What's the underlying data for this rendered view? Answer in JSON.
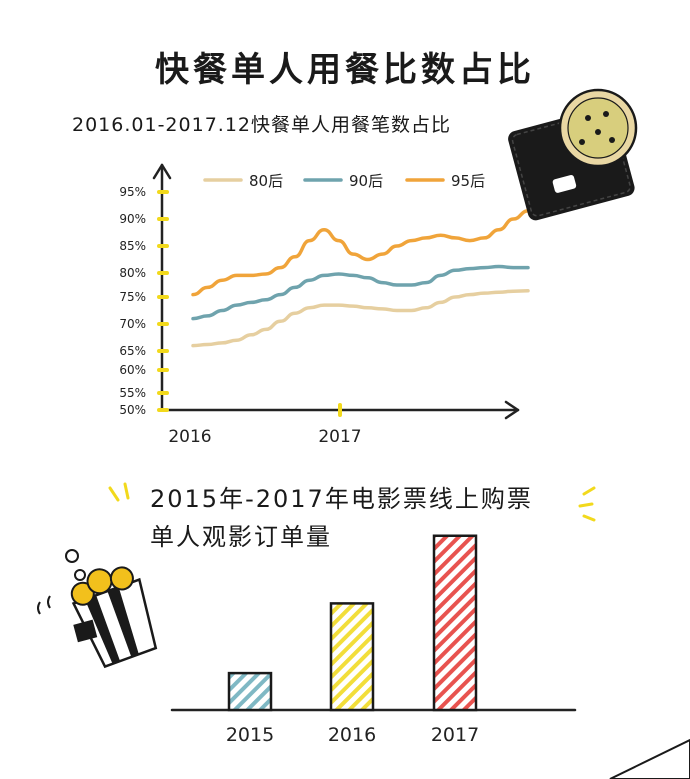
{
  "line_chart": {
    "title": "快餐单人用餐比数占比",
    "subtitle": "2016.01-2017.12快餐单人用餐笔数占比"
  },
  "bar_chart": {
    "title_line1": "2015年-2017年电影票线上购票",
    "title_line2": "单人观影订单量"
  },
  "chart_data": [
    {
      "type": "line",
      "title": "快餐单人用餐比数占比",
      "subtitle": "2016.01-2017.12快餐单人用餐笔数占比",
      "x_ticks": [
        "2016",
        "2017"
      ],
      "y_ticks": [
        "95%",
        "90%",
        "85%",
        "80%",
        "75%",
        "70%",
        "65%",
        "60%",
        "55%",
        "50%"
      ],
      "y_tick_values": [
        95,
        90,
        85,
        80,
        75,
        70,
        65,
        60,
        55,
        50
      ],
      "x": [
        "2016.01",
        "2016.02",
        "2016.03",
        "2016.04",
        "2016.05",
        "2016.06",
        "2016.07",
        "2016.08",
        "2016.09",
        "2016.10",
        "2016.11",
        "2016.12",
        "2017.01",
        "2017.02",
        "2017.03",
        "2017.04",
        "2017.05",
        "2017.06",
        "2017.07",
        "2017.08",
        "2017.09",
        "2017.10",
        "2017.11",
        "2017.12"
      ],
      "legend_position": "top",
      "series": [
        {
          "name": "80后",
          "color": "#e6cfa0",
          "values": [
            66,
            66.2,
            66.5,
            67,
            68,
            69,
            70.5,
            72,
            73,
            73.5,
            73.5,
            73.3,
            73,
            72.8,
            72.5,
            72.5,
            73,
            74,
            75,
            75.5,
            75.8,
            76,
            76.2,
            76.3
          ]
        },
        {
          "name": "90后",
          "color": "#6fa3ad",
          "values": [
            71,
            71.5,
            72.5,
            73.5,
            74,
            74.5,
            75.5,
            77,
            78.5,
            79.5,
            79.8,
            79.5,
            79,
            78,
            77.5,
            77.5,
            78,
            79.5,
            80.5,
            80.8,
            81,
            81.2,
            81,
            81
          ]
        },
        {
          "name": "95后",
          "color": "#f0a43a",
          "values": [
            75.5,
            77,
            78.5,
            79.5,
            79.5,
            79.8,
            81,
            83,
            86,
            88,
            86,
            83.5,
            82.5,
            83.5,
            85,
            86,
            86.5,
            87,
            86.5,
            86,
            86.5,
            88,
            90,
            91.5
          ]
        }
      ]
    },
    {
      "type": "bar",
      "title": "2015年-2017年电影票线上购票单人观影订单量",
      "categories": [
        "2015",
        "2016",
        "2017"
      ],
      "values": [
        18,
        52,
        85
      ],
      "colors": [
        "#7fb8c4",
        "#f2de3a",
        "#e8534f"
      ]
    }
  ]
}
